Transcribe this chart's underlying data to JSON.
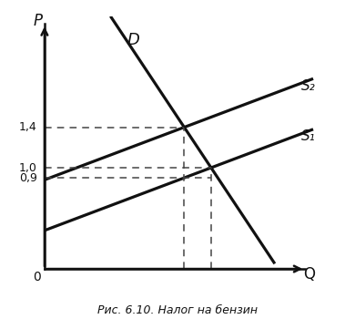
{
  "title": "Рис. 6.10. Налог на бензин",
  "xlabel": "Q",
  "ylabel": "P",
  "xlim": [
    0,
    10
  ],
  "ylim": [
    0,
    2.5
  ],
  "p_label_14": "1,4",
  "p_label_10": "1,0",
  "p_label_09": "0,9",
  "p_zero": "0",
  "label_D": "D",
  "label_S1": "S₁",
  "label_S2": "S₂",
  "Q1": 5.0,
  "Q2": 5.8,
  "P_D_S2": 1.4,
  "P_D_S1": 1.0,
  "P_S2_Q2": 0.9,
  "background_color": "#ffffff",
  "line_color": "#111111",
  "dashed_color": "#444444"
}
